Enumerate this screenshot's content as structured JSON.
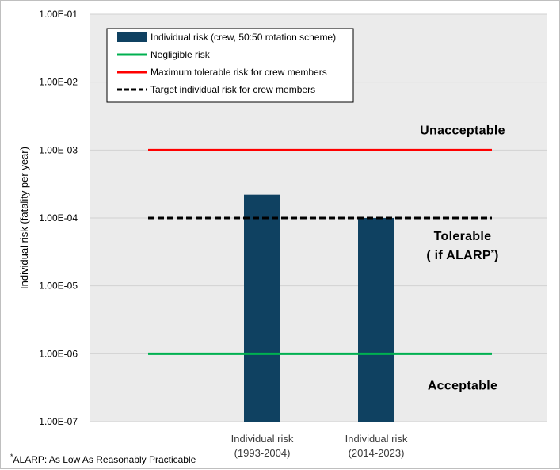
{
  "chart_data": {
    "type": "bar",
    "title": "",
    "ylabel": "Individual risk (fatality per year)",
    "xlabel": "",
    "yscale": "log",
    "ylim": [
      1e-07,
      0.1
    ],
    "y_tick_labels": [
      "1.00E-07",
      "1.00E-06",
      "1.00E-05",
      "1.00E-04",
      "1.00E-03",
      "1.00E-02",
      "1.00E-01"
    ],
    "categories": [
      [
        "Individual risk",
        "(1993-2004)"
      ],
      [
        "Individual risk",
        "(2014-2023)"
      ]
    ],
    "grid": true,
    "legend_position": "top-left",
    "series": [
      {
        "name": "Individual risk (crew, 50:50 rotation scheme)",
        "kind": "bar",
        "color": "#0f4161",
        "values": [
          0.00022,
          0.0001
        ]
      },
      {
        "name": "Negligible risk",
        "kind": "line",
        "style": "solid",
        "color": "#00b050",
        "value": 1e-06
      },
      {
        "name": "Maximum tolerable risk for crew members",
        "kind": "line",
        "style": "solid",
        "color": "#ff0000",
        "value": 0.001
      },
      {
        "name": "Target individual risk for crew members",
        "kind": "line",
        "style": "dashed",
        "color": "#000000",
        "value": 0.0001
      }
    ],
    "annotations": [
      {
        "lines": [
          "Unacceptable"
        ],
        "y": 0.002
      },
      {
        "lines": [
          "Tolerable",
          "( if ALARP*)"
        ],
        "y": 4e-05
      },
      {
        "lines": [
          "Acceptable"
        ],
        "y": 3.5e-07
      }
    ],
    "plot_background": "#ebebeb"
  },
  "footnote": "*ALARP: As Low As Reasonably Practicable"
}
